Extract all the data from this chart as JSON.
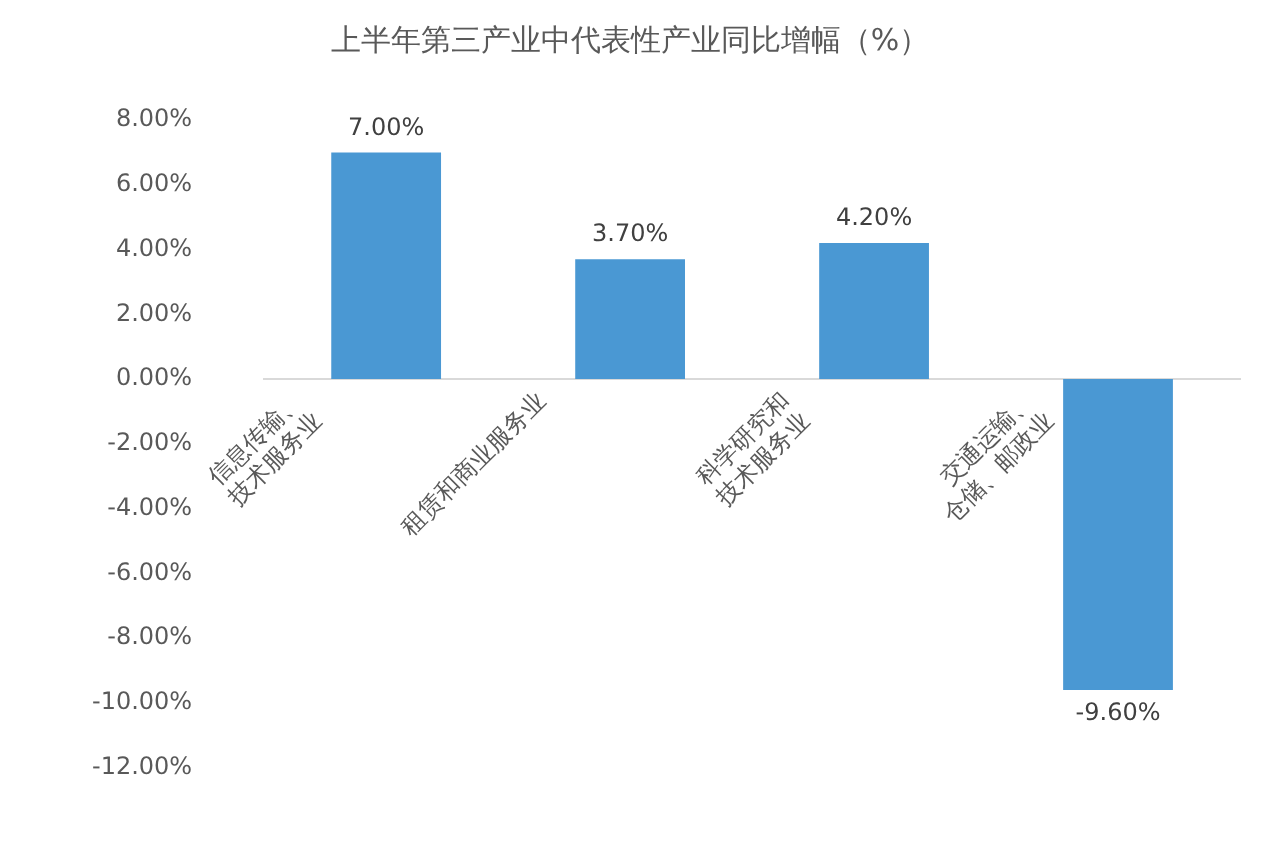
{
  "chart_data": {
    "type": "bar",
    "title": "上半年第三产业中代表性产业同比增幅（%）",
    "categories": [
      "信息传输、技术服务业",
      "租赁和商业服务业",
      "科学研究和技术服务业",
      "交通运输、仓储、邮政业"
    ],
    "values": [
      7.0,
      3.7,
      4.2,
      -9.6
    ],
    "value_labels": [
      "7.00%",
      "3.70%",
      "4.20%",
      "-9.60%"
    ],
    "color": "#4a98d3",
    "ylim": [
      -12,
      8
    ],
    "yticks": [
      {
        "value": -12,
        "label": "-12.00%"
      },
      {
        "value": -10,
        "label": "-10.00%"
      },
      {
        "value": -8,
        "label": "-8.00%"
      },
      {
        "value": -6,
        "label": "-6.00%"
      },
      {
        "value": -4,
        "label": "-4.00%"
      },
      {
        "value": -2,
        "label": "-2.00%"
      },
      {
        "value": 0,
        "label": "0.00%"
      },
      {
        "value": 2,
        "label": "2.00%"
      },
      {
        "value": 4,
        "label": "4.00%"
      },
      {
        "value": 6,
        "label": "6.00%"
      },
      {
        "value": 8,
        "label": "8.00%"
      }
    ],
    "grid": false
  }
}
